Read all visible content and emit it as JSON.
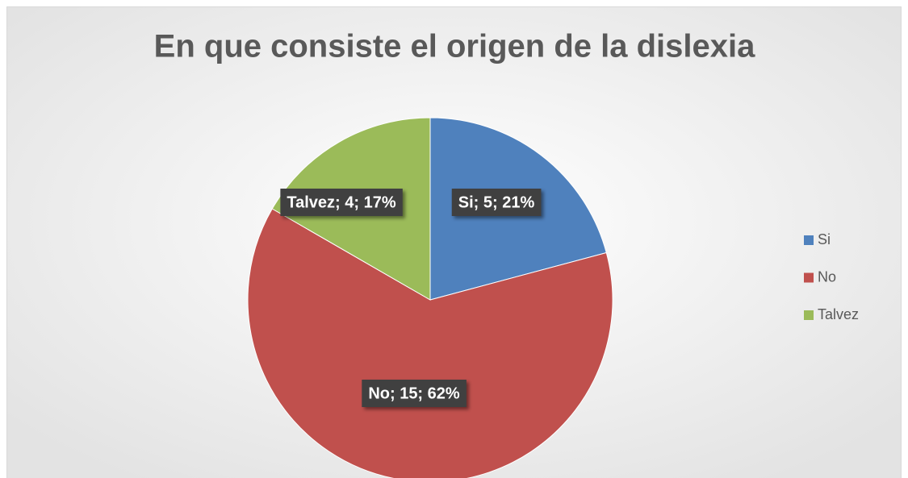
{
  "chart_data": {
    "type": "pie",
    "title": "En que consiste el origen de la dislexia",
    "categories": [
      "Si",
      "No",
      "Talvez"
    ],
    "values": [
      5,
      15,
      4
    ],
    "value_labels": [
      "Si; 5; 21%",
      "No; 15; 62%",
      "Talvez; 4; 17%"
    ],
    "colors": [
      "#4f81bd",
      "#c0504d",
      "#9bbb59"
    ],
    "legend": "right"
  }
}
